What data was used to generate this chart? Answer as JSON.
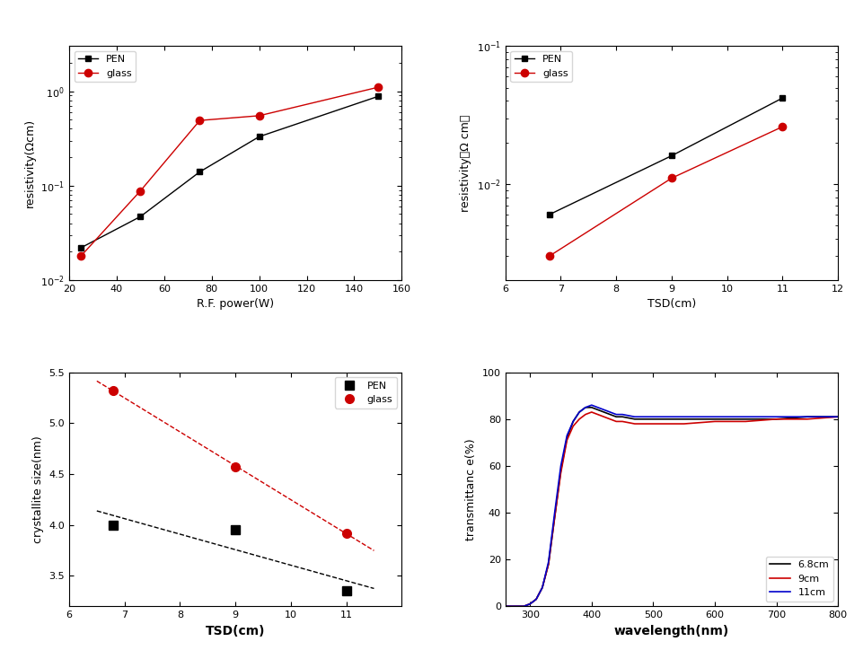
{
  "ax1": {
    "xlabel": "R.F. power(W)",
    "ylabel": "resistivity(Ωcm)",
    "xdata_pen": [
      25,
      50,
      75,
      100,
      150
    ],
    "ydata_pen": [
      0.022,
      0.047,
      0.14,
      0.33,
      0.88
    ],
    "xdata_glass": [
      25,
      50,
      75,
      100,
      150
    ],
    "ydata_glass": [
      0.018,
      0.088,
      0.49,
      0.55,
      1.1
    ],
    "xlim": [
      20,
      160
    ],
    "ylim": [
      0.01,
      3
    ],
    "xticks": [
      20,
      40,
      60,
      80,
      100,
      120,
      140,
      160
    ]
  },
  "ax2": {
    "xlabel": "TSD(cm)",
    "ylabel": "resistivity（Ω cm）",
    "xdata_pen": [
      6.8,
      9,
      11
    ],
    "ydata_pen": [
      0.006,
      0.016,
      0.042
    ],
    "xdata_glass": [
      6.8,
      9,
      11
    ],
    "ydata_glass": [
      0.003,
      0.011,
      0.026
    ],
    "xlim": [
      6,
      12
    ],
    "ylim": [
      0.002,
      0.1
    ],
    "xticks": [
      6,
      7,
      8,
      9,
      10,
      11,
      12
    ]
  },
  "ax3": {
    "xlabel": "TSD(cm)",
    "ylabel": "crystallite size(nm)",
    "xdata_pen": [
      6.8,
      9,
      11
    ],
    "ydata_pen": [
      4.0,
      3.95,
      3.35
    ],
    "xdata_glass": [
      6.8,
      9,
      11
    ],
    "ydata_glass": [
      5.32,
      4.57,
      3.92
    ],
    "xlim": [
      6,
      12
    ],
    "ylim": [
      3.2,
      5.5
    ],
    "yticks": [
      3.5,
      4.0,
      4.5,
      5.0,
      5.5
    ],
    "xticks": [
      6,
      7,
      8,
      9,
      10,
      11
    ]
  },
  "ax4": {
    "xlabel": "wavelength(nm)",
    "ylabel": "transmittanc e(%)",
    "wavelength": [
      260,
      270,
      280,
      290,
      300,
      310,
      320,
      330,
      340,
      350,
      360,
      370,
      380,
      390,
      400,
      410,
      420,
      430,
      440,
      450,
      470,
      500,
      550,
      600,
      650,
      700,
      750,
      800
    ],
    "t_68cm": [
      0,
      0,
      0,
      0,
      1,
      3,
      8,
      18,
      38,
      58,
      72,
      79,
      83,
      85,
      85,
      84,
      83,
      82,
      81,
      81,
      80,
      80,
      80,
      80,
      80,
      80,
      81,
      81
    ],
    "t_9cm": [
      0,
      0,
      0,
      0,
      1,
      3,
      8,
      18,
      38,
      57,
      71,
      77,
      80,
      82,
      83,
      82,
      81,
      80,
      79,
      79,
      78,
      78,
      78,
      79,
      79,
      80,
      80,
      81
    ],
    "t_11cm": [
      0,
      0,
      0,
      0,
      1,
      3,
      8,
      19,
      40,
      60,
      73,
      79,
      83,
      85,
      86,
      85,
      84,
      83,
      82,
      82,
      81,
      81,
      81,
      81,
      81,
      81,
      81,
      81
    ],
    "xlim": [
      260,
      800
    ],
    "ylim": [
      0,
      100
    ],
    "xticks": [
      300,
      400,
      500,
      600,
      700,
      800
    ]
  },
  "pen_color": "#000000",
  "glass_color": "#cc0000",
  "marker_pen": "s",
  "marker_glass": "o",
  "line_68cm": "#000000",
  "line_9cm": "#cc0000",
  "line_11cm": "#0000cc"
}
